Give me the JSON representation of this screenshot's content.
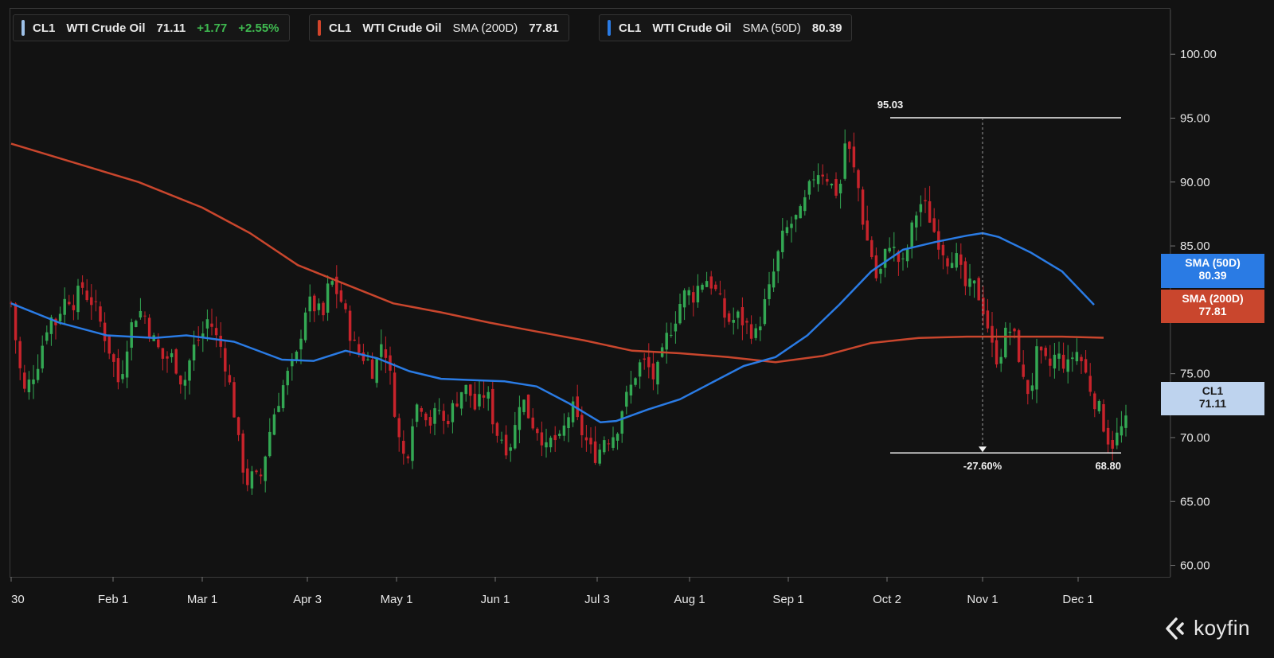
{
  "legend": [
    {
      "ticker": "CL1",
      "name": "WTI Crude Oil",
      "indicator": "",
      "value": "71.11",
      "change": "+1.77",
      "change_pct": "+2.55%",
      "color": "#9ec1e8"
    },
    {
      "ticker": "CL1",
      "name": "WTI Crude Oil",
      "indicator": "SMA (200D)",
      "value": "77.81",
      "change": "",
      "change_pct": "",
      "color": "#d2452b"
    },
    {
      "ticker": "CL1",
      "name": "WTI Crude Oil",
      "indicator": "SMA (50D)",
      "value": "80.39",
      "change": "",
      "change_pct": "",
      "color": "#2a7be4"
    }
  ],
  "axis_tags": {
    "sma50": {
      "label": "SMA (50D)",
      "value": "80.39",
      "color": "#2a7be4"
    },
    "sma200": {
      "label": "SMA (200D)",
      "value": "77.81",
      "color": "#c9462d"
    },
    "price": {
      "label": "CL1",
      "value": "71.11",
      "color": "#bed3ee"
    }
  },
  "logo": "koyfin",
  "chart_data": {
    "type": "candlestick",
    "y_ticks": [
      "60.00",
      "65.00",
      "70.00",
      "75.00",
      "80.00",
      "85.00",
      "90.00",
      "95.00",
      "100.00"
    ],
    "ylim": [
      59.1,
      103.5
    ],
    "x_ticks": [
      {
        "label": "30",
        "day": 0
      },
      {
        "label": "Feb 1",
        "day": 32
      },
      {
        "label": "Mar 1",
        "day": 60
      },
      {
        "label": "Apr 3",
        "day": 93
      },
      {
        "label": "May 1",
        "day": 121
      },
      {
        "label": "Jun 1",
        "day": 152
      },
      {
        "label": "Jul 3",
        "day": 184
      },
      {
        "label": "Aug 1",
        "day": 213
      },
      {
        "label": "Sep 1",
        "day": 244
      },
      {
        "label": "Oct 2",
        "day": 275
      },
      {
        "label": "Nov 1",
        "day": 305
      },
      {
        "label": "Dec 1",
        "day": 335
      }
    ],
    "x_range_days": [
      0,
      351
    ],
    "close_anchors": [
      [
        0,
        80.5
      ],
      [
        2,
        76.5
      ],
      [
        4,
        73.5
      ],
      [
        6,
        74.5
      ],
      [
        8,
        75.5
      ],
      [
        10,
        77.5
      ],
      [
        12,
        79.5
      ],
      [
        14,
        79.0
      ],
      [
        16,
        80.5
      ],
      [
        18,
        81.0
      ],
      [
        20,
        80.5
      ],
      [
        22,
        82.0
      ],
      [
        24,
        81.0
      ],
      [
        26,
        80.5
      ],
      [
        28,
        79.0
      ],
      [
        30,
        77.5
      ],
      [
        32,
        76.0
      ],
      [
        34,
        74.0
      ],
      [
        36,
        77.0
      ],
      [
        38,
        79.0
      ],
      [
        40,
        80.0
      ],
      [
        42,
        79.5
      ],
      [
        44,
        78.0
      ],
      [
        46,
        77.0
      ],
      [
        48,
        76.0
      ],
      [
        50,
        76.5
      ],
      [
        52,
        75.5
      ],
      [
        54,
        74.0
      ],
      [
        56,
        76.0
      ],
      [
        58,
        77.5
      ],
      [
        60,
        78.0
      ],
      [
        62,
        79.5
      ],
      [
        64,
        78.0
      ],
      [
        66,
        77.0
      ],
      [
        68,
        75.0
      ],
      [
        70,
        72.0
      ],
      [
        72,
        68.5
      ],
      [
        74,
        66.5
      ],
      [
        76,
        67.0
      ],
      [
        78,
        66.5
      ],
      [
        80,
        69.0
      ],
      [
        82,
        71.5
      ],
      [
        84,
        73.0
      ],
      [
        86,
        74.5
      ],
      [
        88,
        75.5
      ],
      [
        90,
        76.5
      ],
      [
        92,
        80.0
      ],
      [
        94,
        80.5
      ],
      [
        96,
        80.0
      ],
      [
        98,
        79.5
      ],
      [
        100,
        82.5
      ],
      [
        102,
        81.5
      ],
      [
        104,
        80.5
      ],
      [
        106,
        78.5
      ],
      [
        108,
        77.0
      ],
      [
        110,
        76.5
      ],
      [
        112,
        76.0
      ],
      [
        114,
        75.0
      ],
      [
        116,
        77.5
      ],
      [
        118,
        76.5
      ],
      [
        120,
        73.0
      ],
      [
        122,
        69.5
      ],
      [
        124,
        68.0
      ],
      [
        126,
        71.5
      ],
      [
        128,
        73.0
      ],
      [
        130,
        72.0
      ],
      [
        132,
        71.0
      ],
      [
        134,
        72.5
      ],
      [
        136,
        71.0
      ],
      [
        138,
        72.0
      ],
      [
        140,
        73.0
      ],
      [
        142,
        74.0
      ],
      [
        144,
        73.5
      ],
      [
        146,
        72.0
      ],
      [
        148,
        73.5
      ],
      [
        150,
        73.0
      ],
      [
        152,
        70.5
      ],
      [
        154,
        70.0
      ],
      [
        156,
        69.0
      ],
      [
        158,
        70.5
      ],
      [
        160,
        73.5
      ],
      [
        162,
        72.0
      ],
      [
        164,
        71.0
      ],
      [
        166,
        70.5
      ],
      [
        168,
        69.0
      ],
      [
        170,
        70.0
      ],
      [
        172,
        69.5
      ],
      [
        174,
        71.0
      ],
      [
        176,
        72.5
      ],
      [
        178,
        71.0
      ],
      [
        180,
        70.0
      ],
      [
        182,
        69.0
      ],
      [
        184,
        68.5
      ],
      [
        186,
        70.0
      ],
      [
        188,
        70.0
      ],
      [
        190,
        70.5
      ],
      [
        192,
        72.5
      ],
      [
        194,
        73.5
      ],
      [
        196,
        75.0
      ],
      [
        198,
        76.0
      ],
      [
        200,
        75.5
      ],
      [
        202,
        74.5
      ],
      [
        204,
        76.0
      ],
      [
        206,
        78.0
      ],
      [
        208,
        79.0
      ],
      [
        210,
        80.5
      ],
      [
        212,
        81.5
      ],
      [
        214,
        81.0
      ],
      [
        216,
        82.0
      ],
      [
        218,
        82.5
      ],
      [
        220,
        82.0
      ],
      [
        222,
        81.0
      ],
      [
        224,
        79.5
      ],
      [
        226,
        79.0
      ],
      [
        228,
        79.5
      ],
      [
        230,
        79.0
      ],
      [
        232,
        78.5
      ],
      [
        234,
        78.0
      ],
      [
        236,
        80.0
      ],
      [
        238,
        81.5
      ],
      [
        240,
        83.5
      ],
      [
        242,
        85.5
      ],
      [
        244,
        86.5
      ],
      [
        246,
        87.0
      ],
      [
        248,
        87.5
      ],
      [
        250,
        89.0
      ],
      [
        252,
        90.5
      ],
      [
        254,
        91.0
      ],
      [
        256,
        90.5
      ],
      [
        258,
        89.5
      ],
      [
        260,
        89.0
      ],
      [
        262,
        93.5
      ],
      [
        264,
        91.5
      ],
      [
        266,
        89.5
      ],
      [
        268,
        86.0
      ],
      [
        270,
        84.5
      ],
      [
        272,
        82.0
      ],
      [
        274,
        84.0
      ],
      [
        276,
        85.5
      ],
      [
        278,
        84.0
      ],
      [
        280,
        83.5
      ],
      [
        282,
        85.5
      ],
      [
        284,
        87.5
      ],
      [
        286,
        88.5
      ],
      [
        288,
        87.5
      ],
      [
        290,
        86.0
      ],
      [
        292,
        85.0
      ],
      [
        294,
        84.0
      ],
      [
        296,
        84.5
      ],
      [
        298,
        83.0
      ],
      [
        300,
        81.5
      ],
      [
        302,
        82.0
      ],
      [
        304,
        81.0
      ],
      [
        306,
        79.5
      ],
      [
        308,
        77.0
      ],
      [
        310,
        76.0
      ],
      [
        312,
        78.0
      ],
      [
        314,
        78.5
      ],
      [
        316,
        77.0
      ],
      [
        318,
        74.0
      ],
      [
        320,
        73.5
      ],
      [
        322,
        76.5
      ],
      [
        324,
        76.0
      ],
      [
        326,
        75.5
      ],
      [
        328,
        76.5
      ],
      [
        330,
        76.0
      ],
      [
        332,
        75.5
      ],
      [
        334,
        77.0
      ],
      [
        336,
        76.0
      ],
      [
        338,
        74.5
      ],
      [
        340,
        73.0
      ],
      [
        342,
        72.0
      ],
      [
        344,
        70.0
      ],
      [
        346,
        69.5
      ],
      [
        348,
        70.5
      ],
      [
        350,
        71.1
      ]
    ],
    "series": [
      {
        "name": "SMA (200D)",
        "color": "#c9462d",
        "points": [
          [
            0,
            93.0
          ],
          [
            20,
            91.5
          ],
          [
            40,
            90.0
          ],
          [
            60,
            88.0
          ],
          [
            75,
            86.0
          ],
          [
            90,
            83.5
          ],
          [
            105,
            82.0
          ],
          [
            120,
            80.5
          ],
          [
            135,
            79.8
          ],
          [
            150,
            79.0
          ],
          [
            165,
            78.3
          ],
          [
            180,
            77.6
          ],
          [
            195,
            76.8
          ],
          [
            210,
            76.6
          ],
          [
            225,
            76.3
          ],
          [
            240,
            75.9
          ],
          [
            255,
            76.4
          ],
          [
            270,
            77.4
          ],
          [
            285,
            77.8
          ],
          [
            300,
            77.9
          ],
          [
            315,
            77.9
          ],
          [
            330,
            77.9
          ],
          [
            343,
            77.81
          ]
        ]
      },
      {
        "name": "SMA (50D)",
        "color": "#2a7be4",
        "points": [
          [
            0,
            80.5
          ],
          [
            15,
            79.0
          ],
          [
            30,
            78.0
          ],
          [
            45,
            77.8
          ],
          [
            55,
            78.0
          ],
          [
            70,
            77.5
          ],
          [
            85,
            76.1
          ],
          [
            95,
            76.0
          ],
          [
            105,
            76.8
          ],
          [
            115,
            76.2
          ],
          [
            125,
            75.2
          ],
          [
            135,
            74.6
          ],
          [
            145,
            74.5
          ],
          [
            155,
            74.4
          ],
          [
            165,
            74.0
          ],
          [
            175,
            72.7
          ],
          [
            185,
            71.2
          ],
          [
            190,
            71.3
          ],
          [
            200,
            72.2
          ],
          [
            210,
            73.0
          ],
          [
            220,
            74.3
          ],
          [
            230,
            75.6
          ],
          [
            240,
            76.3
          ],
          [
            250,
            78.0
          ],
          [
            260,
            80.4
          ],
          [
            270,
            83.0
          ],
          [
            280,
            84.7
          ],
          [
            290,
            85.3
          ],
          [
            300,
            85.8
          ],
          [
            305,
            86.0
          ],
          [
            310,
            85.7
          ],
          [
            320,
            84.5
          ],
          [
            330,
            83.0
          ],
          [
            340,
            80.39
          ]
        ]
      }
    ],
    "annotations": {
      "high": {
        "value": 95.03,
        "label": "95.03",
        "day": 276
      },
      "low": {
        "value": 68.8,
        "label": "68.80",
        "day": 346
      },
      "change_label": "-27.60%",
      "marker_day": 305
    }
  }
}
